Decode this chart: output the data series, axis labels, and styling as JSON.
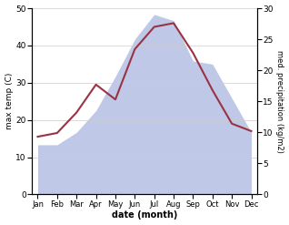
{
  "months": [
    "Jan",
    "Feb",
    "Mar",
    "Apr",
    "May",
    "Jun",
    "Jul",
    "Aug",
    "Sep",
    "Oct",
    "Nov",
    "Dec"
  ],
  "month_indices": [
    0,
    1,
    2,
    3,
    4,
    5,
    6,
    7,
    8,
    9,
    10,
    11
  ],
  "temp": [
    15.5,
    16.5,
    22.0,
    29.5,
    25.5,
    39.0,
    45.0,
    46.0,
    38.0,
    28.0,
    19.0,
    17.0
  ],
  "precip": [
    8.0,
    8.0,
    10.0,
    13.5,
    19.0,
    25.0,
    29.0,
    28.0,
    21.5,
    21.0,
    15.5,
    10.0
  ],
  "temp_color": "#993344",
  "precip_fill_color": "#c0c8e8",
  "ylabel_left": "max temp (C)",
  "ylabel_right": "med. precipitation (kg/m2)",
  "xlabel": "date (month)",
  "ylim_left": [
    0,
    50
  ],
  "ylim_right": [
    0,
    30
  ],
  "yticks_left": [
    0,
    10,
    20,
    30,
    40,
    50
  ],
  "yticks_right": [
    0,
    5,
    10,
    15,
    20,
    25,
    30
  ]
}
